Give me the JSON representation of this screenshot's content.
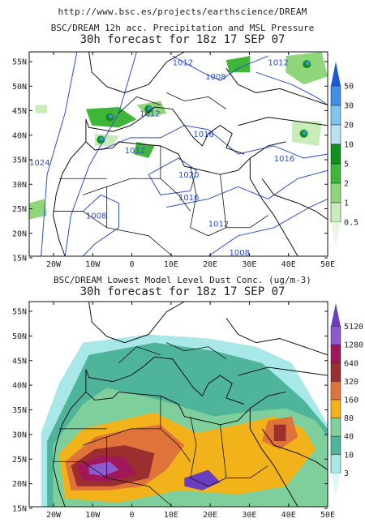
{
  "header": {
    "url": "http://www.bsc.es/projects/earthscience/DREAM"
  },
  "panels": [
    {
      "title": "BSC/DREAM 12h acc. Precipitation and MSL Pressure",
      "subtitle": "30h forecast for 18z 17 SEP 07",
      "colorbar_labels": [
        "50",
        "30",
        "20",
        "10",
        "5",
        "2",
        "1",
        "0.5"
      ],
      "colorbar_colors": [
        "#1a5ad6",
        "#3f8fe8",
        "#7fc3ee",
        "#b9e2ee",
        "#0e8f1e",
        "#3fb63a",
        "#8fd67a",
        "#c9ecb8",
        "#eaf7e2"
      ],
      "isobar_labels": [
        "1012",
        "1008",
        "1012",
        "1016",
        "1016",
        "1020",
        "1016",
        "1012",
        "1008",
        "1012",
        "1008",
        "1012",
        "1024"
      ]
    },
    {
      "title": "BSC/DREAM Lowest Model Level Dust Conc. (ug/m-3)",
      "subtitle": "30h forecast for 18z 17 SEP 07",
      "colorbar_labels": [
        "5120",
        "1280",
        "640",
        "320",
        "160",
        "80",
        "40",
        "10",
        "3"
      ],
      "colorbar_colors": [
        "#6a3fbf",
        "#8e5ad0",
        "#a0185a",
        "#9b2e2e",
        "#e0733a",
        "#f2b21a",
        "#7fcf9c",
        "#4fb59a",
        "#a9e8e8",
        "#dff7f7"
      ]
    }
  ],
  "axes": {
    "lat_labels": [
      "55N",
      "50N",
      "45N",
      "40N",
      "35N",
      "30N",
      "25N",
      "20N",
      "15N"
    ],
    "lon_labels": [
      "20W",
      "10W",
      "0",
      "10E",
      "20E",
      "30E",
      "40E",
      "50E"
    ]
  }
}
